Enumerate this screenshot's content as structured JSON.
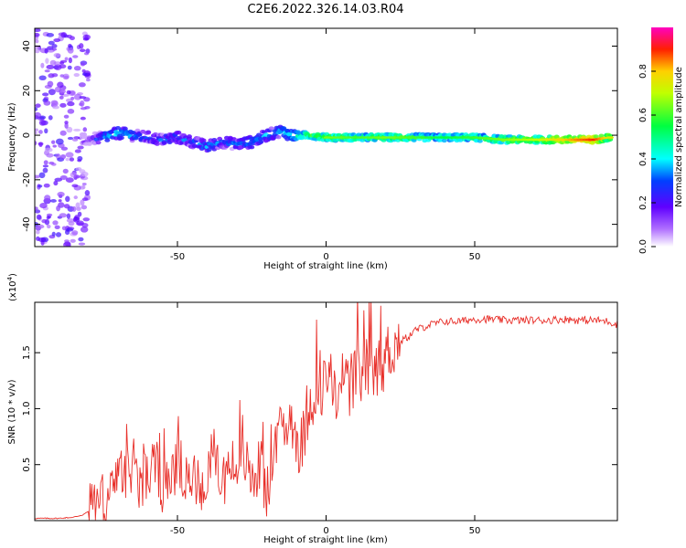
{
  "figure_title": "C2E6.2022.326.14.03.R04",
  "chart_data": [
    {
      "type": "heatmap",
      "title": "",
      "xlabel": "Height of straight line (km)",
      "ylabel": "Frequency (Hz)",
      "xlim": [
        -98,
        98
      ],
      "ylim": [
        -50,
        48
      ],
      "x_ticks": [
        -50,
        0,
        50
      ],
      "y_ticks": [
        -40,
        -20,
        0,
        20,
        40
      ],
      "colorbar": {
        "label": "Normalized spectral amplitude",
        "range": [
          0,
          1
        ],
        "ticks": [
          0.0,
          0.2,
          0.4,
          0.6,
          0.8
        ],
        "colormap": [
          "#ffffff",
          "#8000ff",
          "#0000ff",
          "#00ffff",
          "#00ff00",
          "#ffff00",
          "#ff0000",
          "#ff00ff"
        ]
      },
      "ridge": {
        "description_points_x": [
          -80,
          -75,
          -70,
          -65,
          -60,
          -55,
          -50,
          -45,
          -40,
          -35,
          -30,
          -25,
          -20,
          -15,
          -12,
          -5,
          0,
          10,
          20,
          30,
          40,
          50,
          60,
          70,
          80,
          90,
          95
        ],
        "description_points_freq": [
          -2,
          -1,
          1,
          0,
          -1,
          -2,
          -1,
          -3,
          -5,
          -3,
          -4,
          -3,
          0,
          2,
          0,
          0,
          -1,
          -1,
          -1,
          -1,
          -1,
          -1,
          -2,
          -2,
          -2,
          -2,
          -1
        ],
        "amplitude": [
          0.15,
          0.35,
          0.4,
          0.35,
          0.3,
          0.3,
          0.3,
          0.3,
          0.35,
          0.3,
          0.3,
          0.35,
          0.35,
          0.35,
          0.45,
          0.55,
          0.6,
          0.55,
          0.6,
          0.55,
          0.5,
          0.55,
          0.6,
          0.65,
          0.75,
          0.85,
          0.7
        ]
      }
    },
    {
      "type": "line",
      "title": "",
      "xlabel": "Height of straight line (km)",
      "ylabel": "SNR (10 * v/v)",
      "y_scale_label": "(x10",
      "y_scale_exp": "4",
      "y_scale_close": ")",
      "xlim": [
        -98,
        98
      ],
      "ylim": [
        0,
        1.95
      ],
      "x_ticks": [
        -50,
        0,
        50
      ],
      "y_ticks": [
        0.5,
        1.0,
        1.5
      ],
      "color": "#e8302a",
      "series": [
        {
          "x": [
            -98,
            -90,
            -85,
            -82,
            -80,
            -78,
            -75,
            -72,
            -70,
            -68,
            -66,
            -65,
            -63,
            -60,
            -58,
            -55,
            -52,
            -50,
            -48,
            -45,
            -42,
            -40,
            -38,
            -35,
            -32,
            -30,
            -28,
            -25,
            -22,
            -20,
            -18,
            -16,
            -15,
            -14,
            -12,
            -10,
            -8,
            -6,
            -4,
            -2,
            0,
            2,
            4,
            6,
            8,
            10,
            12,
            14,
            16,
            18,
            20,
            22,
            25,
            28,
            30,
            35,
            40,
            45,
            50,
            55,
            60,
            65,
            70,
            75,
            80,
            85,
            90,
            95,
            98
          ],
          "y": [
            0.02,
            0.02,
            0.03,
            0.05,
            0.08,
            0.15,
            0.2,
            0.25,
            0.35,
            0.45,
            0.4,
            0.6,
            0.35,
            0.4,
            0.5,
            0.3,
            0.35,
            0.55,
            0.3,
            0.4,
            0.3,
            0.35,
            0.6,
            0.35,
            0.5,
            0.45,
            0.6,
            0.35,
            0.5,
            0.2,
            0.55,
            0.7,
            0.9,
            0.8,
            0.95,
            0.75,
            0.65,
            1.05,
            1.15,
            1.25,
            1.2,
            1.25,
            1.15,
            1.3,
            1.2,
            1.25,
            1.3,
            1.35,
            1.3,
            1.4,
            1.45,
            1.55,
            1.6,
            1.65,
            1.7,
            1.75,
            1.78,
            1.78,
            1.8,
            1.8,
            1.79,
            1.79,
            1.79,
            1.79,
            1.8,
            1.79,
            1.79,
            1.78,
            1.75
          ]
        }
      ]
    }
  ]
}
